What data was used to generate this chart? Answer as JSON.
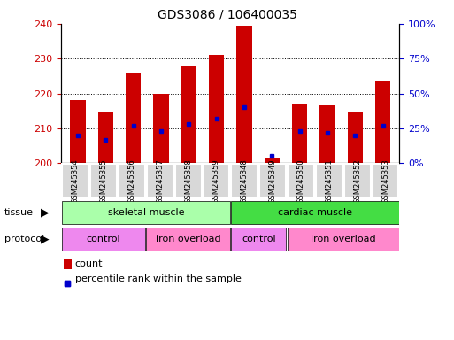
{
  "title": "GDS3086 / 106400035",
  "samples": [
    "GSM245354",
    "GSM245355",
    "GSM245356",
    "GSM245357",
    "GSM245358",
    "GSM245359",
    "GSM245348",
    "GSM245349",
    "GSM245350",
    "GSM245351",
    "GSM245352",
    "GSM245353"
  ],
  "count_values": [
    218,
    214.5,
    226,
    220,
    228,
    231,
    239.5,
    201.5,
    217,
    216.5,
    214.5,
    223.5
  ],
  "percentile_values": [
    20,
    17,
    27,
    23,
    28,
    32,
    40,
    5,
    23,
    22,
    20,
    27
  ],
  "ymin": 200,
  "ymax": 240,
  "yticks": [
    200,
    210,
    220,
    230,
    240
  ],
  "right_yticks": [
    0,
    25,
    50,
    75,
    100
  ],
  "tissue_groups": [
    {
      "label": "skeletal muscle",
      "start": 0,
      "end": 6,
      "color": "#aaffaa"
    },
    {
      "label": "cardiac muscle",
      "start": 6,
      "end": 12,
      "color": "#44dd44"
    }
  ],
  "protocol_groups": [
    {
      "label": "control",
      "start": 0,
      "end": 3,
      "color": "#ee88ee"
    },
    {
      "label": "iron overload",
      "start": 3,
      "end": 6,
      "color": "#ff88cc"
    },
    {
      "label": "control",
      "start": 6,
      "end": 8,
      "color": "#ee88ee"
    },
    {
      "label": "iron overload",
      "start": 8,
      "end": 12,
      "color": "#ff88cc"
    }
  ],
  "bar_color": "#cc0000",
  "dot_color": "#0000cc",
  "bar_width": 0.55,
  "grid_color": "#000000",
  "tick_label_color_left": "#cc0000",
  "tick_label_color_right": "#0000cc",
  "legend_count_label": "count",
  "legend_pct_label": "percentile rank within the sample",
  "bg_color": "#ffffff",
  "cell_bg_color": "#d8d8d8",
  "cell_border_color": "#ffffff"
}
